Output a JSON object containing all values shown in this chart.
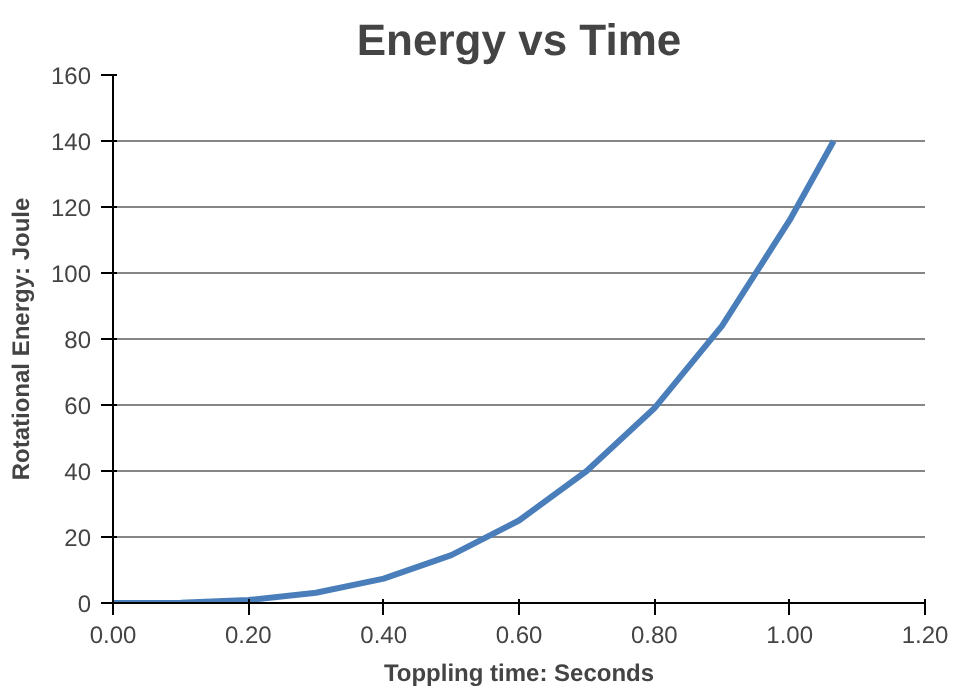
{
  "chart_data": {
    "type": "line",
    "title": "Energy vs Time",
    "xlabel": "Toppling time: Seconds",
    "ylabel": "Rotational Energy: Joule",
    "x": [
      0,
      0.1,
      0.2,
      0.3,
      0.4,
      0.5,
      0.6,
      0.7,
      0.8,
      0.9,
      1.0,
      1.065
    ],
    "series": [
      {
        "color": "#4a7ebb",
        "values": [
          0,
          0.1,
          0.9,
          3.1,
          7.4,
          14.5,
          25,
          40,
          59,
          84,
          116,
          140
        ]
      }
    ],
    "xlim": [
      0,
      1.2
    ],
    "xticks": [
      {
        "value": 0,
        "label": "0.00"
      },
      {
        "value": 0.2,
        "label": "0.20"
      },
      {
        "value": 0.4,
        "label": "0.40"
      },
      {
        "value": 0.6,
        "label": "0.60"
      },
      {
        "value": 0.8,
        "label": "0.80"
      },
      {
        "value": 1.0,
        "label": "1.00"
      },
      {
        "value": 1.2,
        "label": "1.20"
      }
    ],
    "ylim": [
      0,
      160
    ],
    "yticks": [
      0,
      20,
      40,
      60,
      80,
      100,
      120,
      140,
      160
    ],
    "grid": "y",
    "marker": "none",
    "line_style": "solid"
  }
}
